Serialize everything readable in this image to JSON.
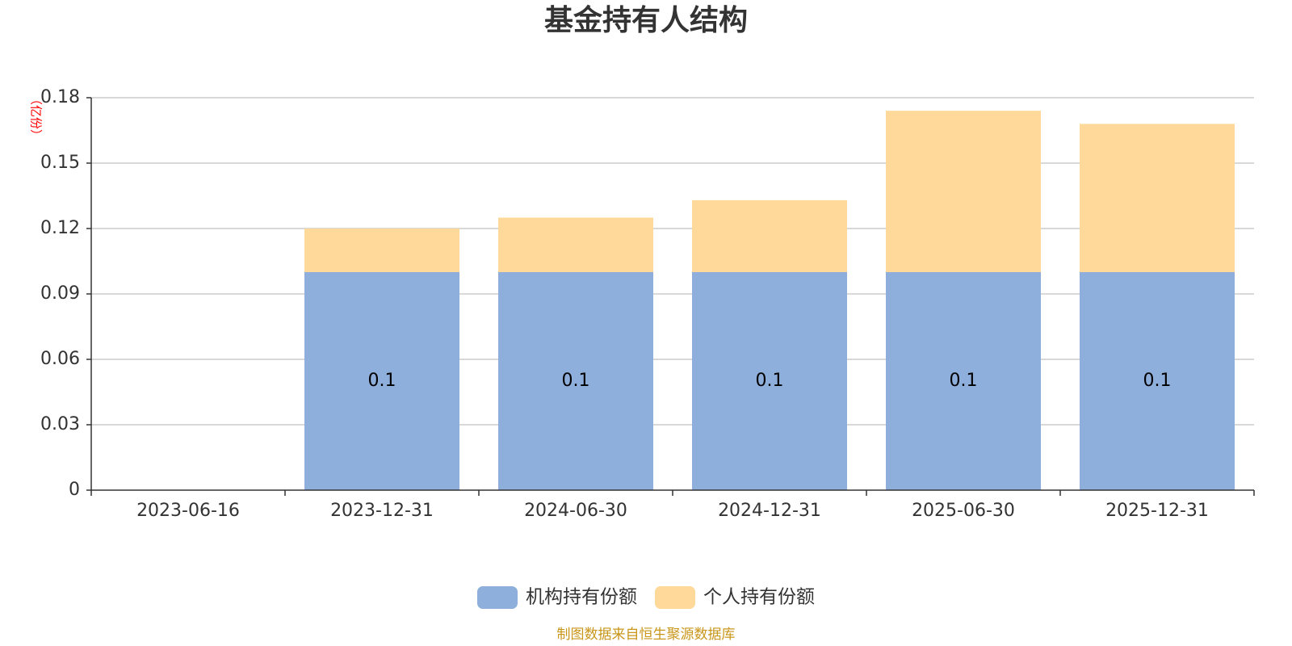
{
  "chart_data": {
    "type": "bar",
    "stacked": true,
    "title": "基金持有人结构",
    "unit_label": "（亿份）",
    "categories": [
      "2023-06-16",
      "2023-12-31",
      "2024-06-30",
      "2024-12-31",
      "2025-06-30",
      "2025-12-31"
    ],
    "y_ticks": [
      "0",
      "0.03",
      "0.06",
      "0.09",
      "0.12",
      "0.15",
      "0.18"
    ],
    "ylim": [
      0,
      0.18
    ],
    "grid": true,
    "legend_position": "bottom-center",
    "series": [
      {
        "name": "机构持有份额",
        "color": "#8eaedb",
        "values": [
          0,
          0.1,
          0.1,
          0.1,
          0.1,
          0.1
        ],
        "labels": [
          "",
          "0.1",
          "0.1",
          "0.1",
          "0.1",
          "0.1"
        ]
      },
      {
        "name": "个人持有份额",
        "color": "#fed999",
        "values": [
          0,
          0.02,
          0.025,
          0.033,
          0.074,
          0.068
        ]
      }
    ],
    "source": "制图数据来自恒生聚源数据库"
  }
}
